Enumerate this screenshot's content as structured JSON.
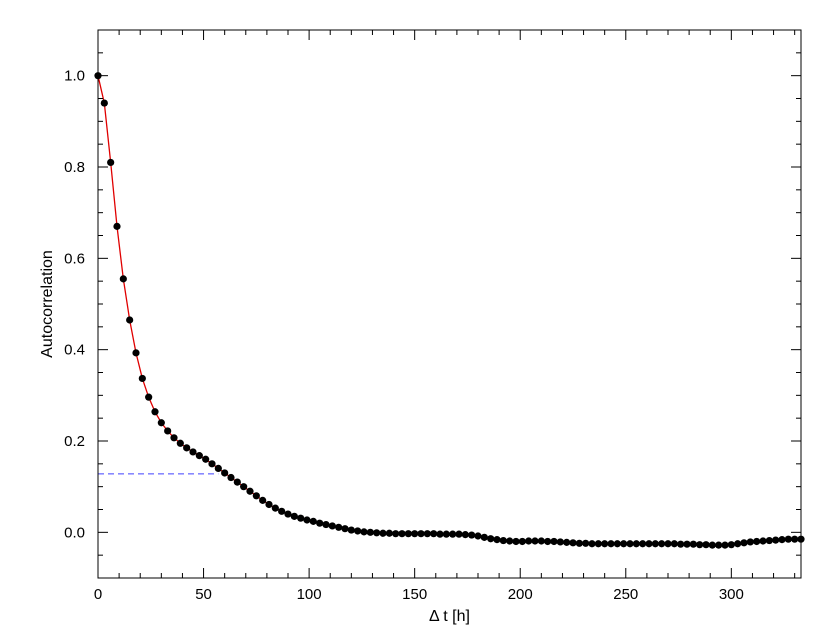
{
  "chart_data": {
    "type": "scatter",
    "title": "",
    "xlabel": "Δ t [h]",
    "ylabel": "Autocorrelation",
    "xlim": [
      0,
      333
    ],
    "ylim": [
      -0.1,
      1.1
    ],
    "x_ticks": [
      0,
      50,
      100,
      150,
      200,
      250,
      300
    ],
    "x_tick_labels": [
      "0",
      "50",
      "100",
      "150",
      "200",
      "250",
      "300"
    ],
    "y_ticks": [
      0.0,
      0.2,
      0.4,
      0.6,
      0.8,
      1.0
    ],
    "y_tick_labels": [
      "0.0",
      "0.2",
      "0.4",
      "0.6",
      "0.8",
      "1.0"
    ],
    "grid": false,
    "series": [
      {
        "x": [
          0,
          3,
          6,
          9,
          12,
          15,
          18,
          21,
          24,
          27,
          30,
          33,
          36,
          39,
          42,
          45,
          48,
          51,
          54,
          57,
          60,
          63,
          66,
          69,
          72,
          75,
          78,
          81,
          84,
          87,
          90,
          93,
          96,
          99,
          102,
          105,
          108,
          111,
          114,
          117,
          120,
          123,
          126,
          129,
          132,
          135,
          138,
          141,
          144,
          147,
          150,
          153,
          156,
          159,
          162,
          165,
          168,
          171,
          174,
          177,
          180,
          183,
          186,
          189,
          192,
          195,
          198,
          201,
          204,
          207,
          210,
          213,
          216,
          219,
          222,
          225,
          228,
          231,
          234,
          237,
          240,
          243,
          246,
          249,
          252,
          255,
          258,
          261,
          264,
          267,
          270,
          273,
          276,
          279,
          282,
          285,
          288,
          291,
          294,
          297,
          300,
          303,
          306,
          309,
          312,
          315,
          318,
          321,
          324,
          327,
          330,
          333
        ],
        "y": [
          1.0,
          0.94,
          0.81,
          0.67,
          0.555,
          0.465,
          0.393,
          0.337,
          0.296,
          0.264,
          0.24,
          0.222,
          0.207,
          0.195,
          0.185,
          0.176,
          0.168,
          0.16,
          0.15,
          0.14,
          0.13,
          0.12,
          0.11,
          0.1,
          0.09,
          0.08,
          0.07,
          0.061,
          0.053,
          0.046,
          0.04,
          0.035,
          0.031,
          0.027,
          0.024,
          0.02,
          0.017,
          0.014,
          0.011,
          0.008,
          0.005,
          0.003,
          0.001,
          0.0,
          -0.001,
          -0.002,
          -0.002,
          -0.003,
          -0.003,
          -0.003,
          -0.003,
          -0.003,
          -0.003,
          -0.003,
          -0.004,
          -0.004,
          -0.004,
          -0.004,
          -0.005,
          -0.006,
          -0.008,
          -0.011,
          -0.014,
          -0.016,
          -0.018,
          -0.019,
          -0.02,
          -0.02,
          -0.019,
          -0.019,
          -0.019,
          -0.02,
          -0.02,
          -0.021,
          -0.022,
          -0.023,
          -0.024,
          -0.024,
          -0.025,
          -0.025,
          -0.025,
          -0.025,
          -0.025,
          -0.025,
          -0.025,
          -0.025,
          -0.025,
          -0.025,
          -0.025,
          -0.025,
          -0.025,
          -0.025,
          -0.026,
          -0.026,
          -0.026,
          -0.027,
          -0.027,
          -0.028,
          -0.028,
          -0.028,
          -0.027,
          -0.025,
          -0.023,
          -0.021,
          -0.02,
          -0.019,
          -0.018,
          -0.017,
          -0.016,
          -0.015,
          -0.015,
          -0.015
        ],
        "marker_color": "#000000",
        "line_color": "#e00000"
      }
    ],
    "reference_line": {
      "y": 0.128,
      "x_range": [
        0,
        57
      ],
      "style": "dashed",
      "color": "#4040ff"
    }
  }
}
